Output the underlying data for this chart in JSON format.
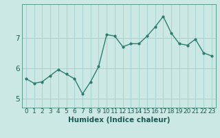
{
  "x": [
    0,
    1,
    2,
    3,
    4,
    5,
    6,
    7,
    8,
    9,
    10,
    11,
    12,
    13,
    14,
    15,
    16,
    17,
    18,
    19,
    20,
    21,
    22,
    23
  ],
  "y": [
    5.65,
    5.5,
    5.55,
    5.75,
    5.95,
    5.8,
    5.65,
    5.15,
    5.55,
    6.05,
    7.1,
    7.05,
    6.7,
    6.8,
    6.8,
    7.05,
    7.35,
    7.7,
    7.15,
    6.8,
    6.75,
    6.95,
    6.5,
    6.4
  ],
  "line_color": "#2d7d6e",
  "marker": "o",
  "marker_size": 2.0,
  "linewidth": 1.0,
  "bg_color": "#cce8e5",
  "grid_color": "#9fd0cb",
  "xlabel": "Humidex (Indice chaleur)",
  "xlim": [
    -0.5,
    23.5
  ],
  "ylim": [
    4.7,
    8.1
  ],
  "yticks": [
    5,
    6,
    7
  ],
  "xtick_labels": [
    "0",
    "1",
    "2",
    "3",
    "4",
    "5",
    "6",
    "7",
    "8",
    "9",
    "10",
    "11",
    "12",
    "13",
    "14",
    "15",
    "16",
    "17",
    "18",
    "19",
    "20",
    "21",
    "22",
    "23"
  ],
  "xlabel_fontsize": 7.5,
  "tick_fontsize": 6.5,
  "spine_color": "#5a9a8a"
}
